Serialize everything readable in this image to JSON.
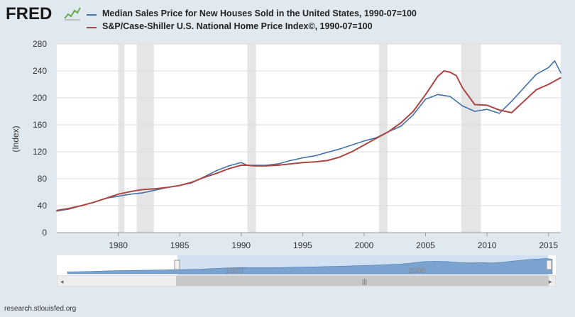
{
  "header": {
    "logo_text": "FRED",
    "logo_icon": "chart-line-icon"
  },
  "legend": [
    {
      "label": "Median Sales Price for New Houses Sold in the United States, 1990-07=100",
      "color": "#4572a7"
    },
    {
      "label": "S&P/Case-Shiller U.S. National Home Price Index©, 1990-07=100",
      "color": "#aa4643"
    }
  ],
  "footer": {
    "source": "research.stlouisfed.org"
  },
  "navigator": {
    "labels": [
      "1980",
      "2000"
    ]
  },
  "chart_data": {
    "type": "line",
    "ylabel": "(Index)",
    "xlabel": "",
    "xlim": [
      1975.0,
      2016.0
    ],
    "ylim": [
      0,
      280
    ],
    "yticks": [
      0,
      40,
      80,
      120,
      160,
      200,
      240,
      280
    ],
    "xticks": [
      1980,
      1985,
      1990,
      1995,
      2000,
      2005,
      2010,
      2015
    ],
    "grid": true,
    "legend_position": "top",
    "recessions": [
      [
        1980.0,
        1980.5
      ],
      [
        1981.5,
        1982.9
      ],
      [
        1990.5,
        1991.2
      ],
      [
        2001.2,
        2001.9
      ],
      [
        2007.9,
        2009.5
      ]
    ],
    "series": [
      {
        "name": "Median Sales Price for New Houses Sold in the United States, 1990-07=100",
        "color": "#4572a7",
        "x": [
          1975.0,
          1976.0,
          1977.0,
          1978.0,
          1979.0,
          1980.0,
          1981.0,
          1982.0,
          1983.0,
          1984.0,
          1985.0,
          1986.0,
          1987.0,
          1988.0,
          1989.0,
          1990.0,
          1990.5,
          1991.0,
          1992.0,
          1993.0,
          1994.0,
          1995.0,
          1996.0,
          1997.0,
          1998.0,
          1999.0,
          2000.0,
          2001.0,
          2002.0,
          2003.0,
          2004.0,
          2005.0,
          2006.0,
          2007.0,
          2008.0,
          2009.0,
          2010.0,
          2011.0,
          2012.0,
          2013.0,
          2014.0,
          2015.0,
          2015.5,
          2016.0
        ],
        "y": [
          32,
          35,
          40,
          45,
          51,
          54,
          57,
          59,
          63,
          67,
          70,
          74,
          83,
          92,
          99,
          104,
          100,
          100,
          100,
          102,
          107,
          111,
          114,
          119,
          124,
          130,
          136,
          141,
          150,
          158,
          175,
          198,
          205,
          202,
          188,
          180,
          183,
          177,
          195,
          215,
          235,
          245,
          255,
          237
        ]
      },
      {
        "name": "S&P/Case-Shiller U.S. National Home Price Index©, 1990-07=100",
        "color": "#aa4643",
        "x": [
          1975.0,
          1976.0,
          1977.0,
          1978.0,
          1979.0,
          1980.0,
          1981.0,
          1982.0,
          1983.0,
          1984.0,
          1985.0,
          1986.0,
          1987.0,
          1988.0,
          1989.0,
          1990.0,
          1990.5,
          1991.0,
          1992.0,
          1993.0,
          1994.0,
          1995.0,
          1996.0,
          1997.0,
          1998.0,
          1999.0,
          2000.0,
          2001.0,
          2002.0,
          2003.0,
          2004.0,
          2005.0,
          2006.0,
          2006.5,
          2007.0,
          2007.5,
          2008.0,
          2009.0,
          2010.0,
          2011.0,
          2012.0,
          2013.0,
          2014.0,
          2015.0,
          2016.0
        ],
        "y": [
          33,
          36,
          40,
          45,
          51,
          57,
          61,
          64,
          65,
          67,
          70,
          75,
          82,
          88,
          95,
          100,
          100,
          99,
          99,
          100,
          102,
          104,
          105,
          107,
          112,
          120,
          130,
          140,
          150,
          163,
          180,
          205,
          232,
          240,
          238,
          233,
          215,
          190,
          189,
          182,
          178,
          195,
          212,
          220,
          230
        ]
      }
    ]
  }
}
